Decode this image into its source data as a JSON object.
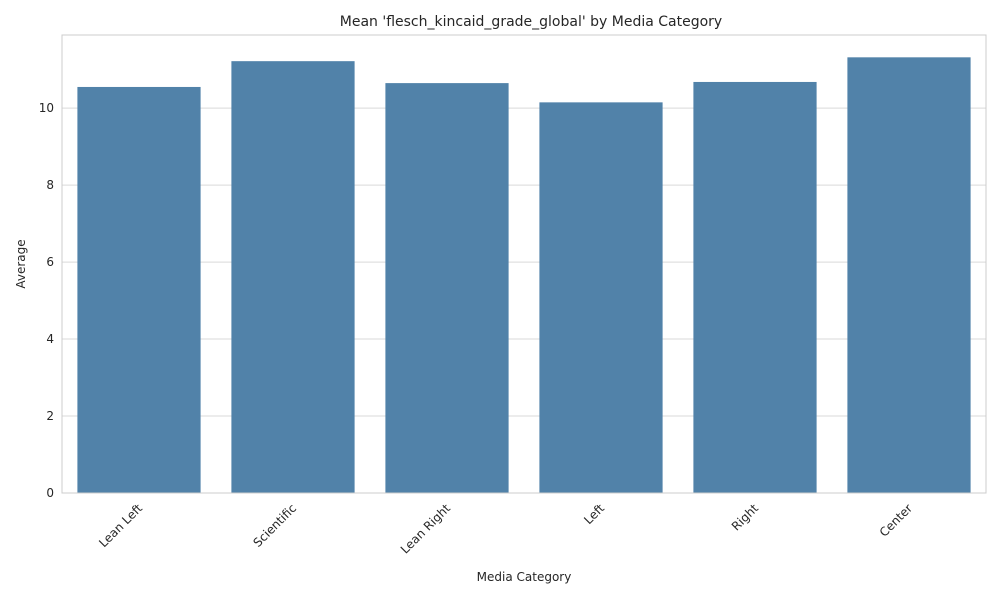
{
  "chart_data": {
    "type": "bar",
    "title": "Mean 'flesch_kincaid_grade_global' by Media Category",
    "xlabel": "Media Category",
    "ylabel": "Average",
    "categories": [
      "Lean Left",
      "Scientific",
      "Lean Right",
      "Left",
      "Right",
      "Center"
    ],
    "values": [
      10.55,
      11.22,
      10.65,
      10.15,
      10.68,
      11.32
    ],
    "ylim": [
      0,
      11.9
    ],
    "yticks": [
      0,
      2,
      4,
      6,
      8,
      10
    ],
    "grid": true,
    "legend": "none",
    "colors": {
      "bar": "#5182a9",
      "grid": "#d9d9d9",
      "axis": "#cccccc",
      "text": "#262626"
    }
  }
}
